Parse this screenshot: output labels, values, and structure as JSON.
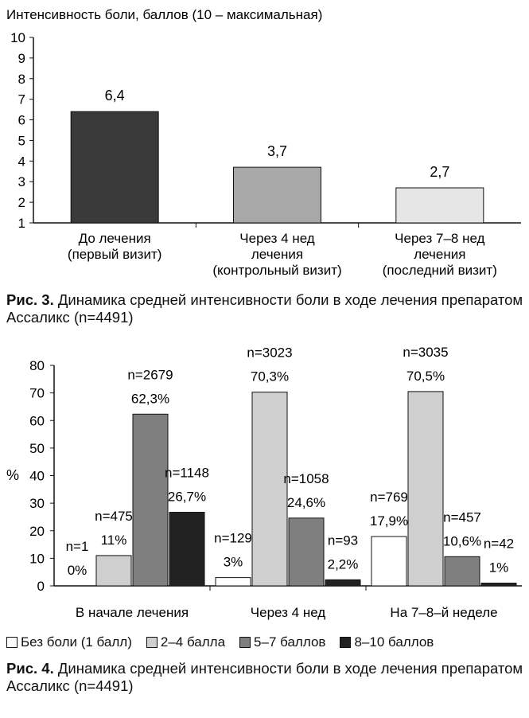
{
  "chart_data": [
    {
      "type": "bar",
      "title": "Интенсивность боли, баллов (10 – максимальная)",
      "ylim": [
        1,
        10
      ],
      "yticks": [
        1,
        2,
        3,
        4,
        5,
        6,
        7,
        8,
        9,
        10
      ],
      "categories": [
        [
          "До лечения",
          "(первый визит)"
        ],
        [
          "Через 4 нед",
          "лечения",
          "(контрольный визит)"
        ],
        [
          "Через 7–8 нед",
          "лечения",
          "(последний визит)"
        ]
      ],
      "values": [
        6.4,
        3.7,
        2.7
      ],
      "labels": [
        "6,4",
        "3,7",
        "2,7"
      ],
      "colors": [
        "#3a3a3a",
        "#a8a8a8",
        "#e6e6e6"
      ]
    },
    {
      "type": "bar",
      "ylabel": "%",
      "ylim": [
        0,
        80
      ],
      "yticks": [
        0,
        10,
        20,
        30,
        40,
        50,
        60,
        70,
        80
      ],
      "categories": [
        "В  начале лечения",
        "Через 4 нед",
        "На 7–8–й неделе"
      ],
      "legend_position": "bottom",
      "series": [
        {
          "name": "Без боли (1 балл)",
          "color": "#ffffff",
          "values": [
            0,
            3,
            17.9
          ],
          "labels": [
            [
              "n=1",
              "0%"
            ],
            [
              "n=129",
              "3%"
            ],
            [
              "n=769",
              "17,9%"
            ]
          ]
        },
        {
          "name": "2–4 балла",
          "color": "#cfcfcf",
          "values": [
            11,
            70.3,
            70.5
          ],
          "labels": [
            [
              "n=475",
              "11%"
            ],
            [
              "n=3023",
              "70,3%"
            ],
            [
              "n=3035",
              "70,5%"
            ]
          ]
        },
        {
          "name": "5–7 баллов",
          "color": "#7f7f7f",
          "values": [
            62.3,
            24.6,
            10.6
          ],
          "labels": [
            [
              "n=2679",
              "62,3%"
            ],
            [
              "n=1058",
              "24,6%"
            ],
            [
              "n=457",
              "10,6%"
            ]
          ]
        },
        {
          "name": "8–10 баллов",
          "color": "#222222",
          "values": [
            26.7,
            2.2,
            1
          ],
          "labels": [
            [
              "n=1148",
              "26,7%"
            ],
            [
              "n=93",
              "2,2%"
            ],
            [
              "n=42",
              "1%"
            ]
          ]
        }
      ]
    }
  ],
  "captions": {
    "fig3_label": "Рис. 3.",
    "fig3_text": " Динамика средней интенсивности боли в ходе лечения препаратом Ассаликс (n=4491)",
    "fig4_label": "Рис. 4.",
    "fig4_text": " Динамика средней интенсивности боли в ходе лечения препаратом Ассаликс (n=4491)"
  }
}
